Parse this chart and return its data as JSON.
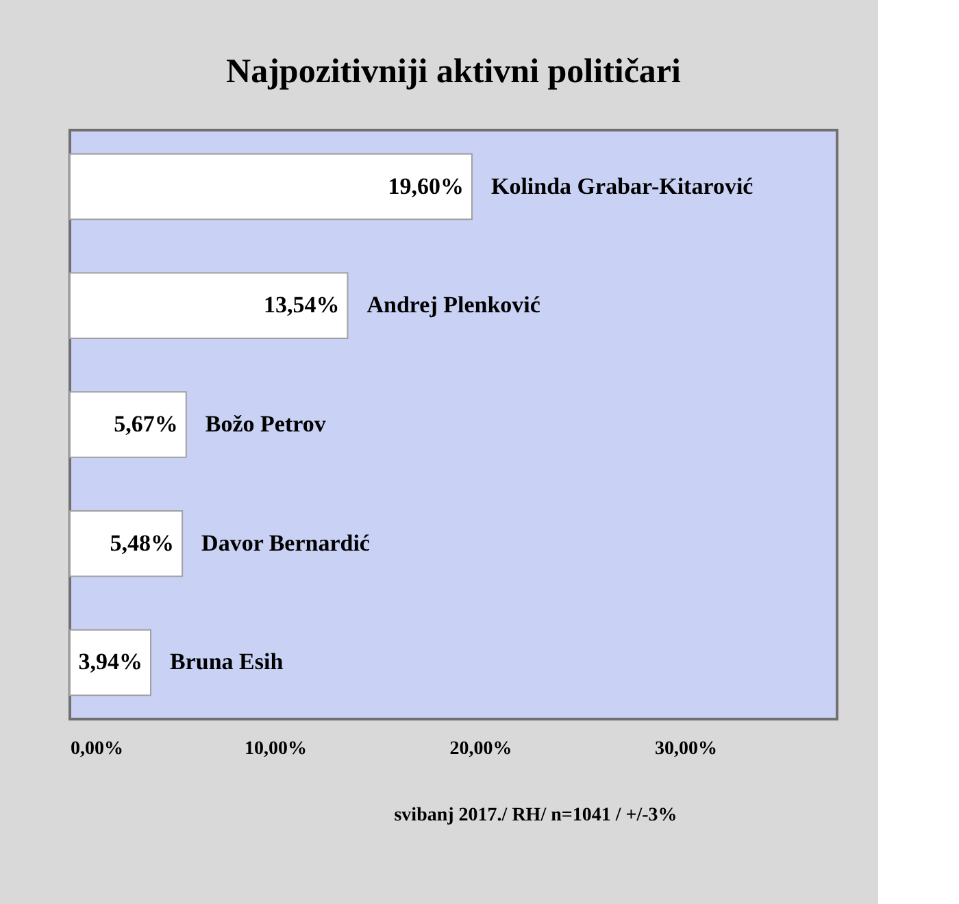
{
  "chart_data": {
    "type": "bar",
    "orientation": "horizontal",
    "title": "Najpozitivniji aktivni političari",
    "categories": [
      "Kolinda  Grabar-Kitarović",
      "Andrej Plenković",
      "Božo Petrov",
      "Davor Bernardić",
      "Bruna Esih"
    ],
    "values": [
      19.6,
      13.54,
      5.67,
      5.48,
      3.94
    ],
    "value_labels": [
      "19,60%",
      "13,54%",
      "5,67%",
      "5,48%",
      "3,94%"
    ],
    "color": "#ffffff",
    "xlim": [
      0,
      37.4
    ],
    "xticks": [
      {
        "value": 0,
        "label": "0,00%"
      },
      {
        "value": 10,
        "label": "10,00%"
      },
      {
        "value": 20,
        "label": "20,00%"
      },
      {
        "value": 30,
        "label": "30,00%"
      }
    ],
    "grid": false,
    "annotations": [
      "svibanj 2017./ RH/ n=1041 / +/-3%"
    ]
  }
}
